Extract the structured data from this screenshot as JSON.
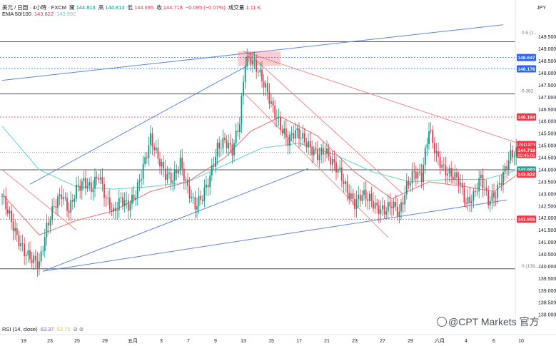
{
  "header": {
    "symbol": "美元 / 日圆 · 4小時 · FXCM",
    "open_label": "開",
    "open": "144.813",
    "high_label": "高",
    "high": "144.813",
    "low_label": "低",
    "low": "144.695",
    "close_label": "收",
    "close": "144.718",
    "change": "−0.095 (−0.07%)",
    "volume_label": "成交量",
    "volume": "1.11 K",
    "ema_label": "EMA 50/100",
    "ema50": "143.822",
    "ema100": "143.992",
    "currency": "JPY"
  },
  "rsi": {
    "label": "RSI (14, close)",
    "v1": "63.37",
    "v2": "53.79"
  },
  "watermark": "@CPT Markets 官方",
  "colors": {
    "up": "#089981",
    "down": "#f23645",
    "ema50": "#f06c6c",
    "ema100": "#5cd6d0",
    "trendline": "#5b86e5",
    "resistance": "#f28b8b"
  },
  "chart_data": {
    "type": "candlestick",
    "symbol": "USDJPY",
    "timeframe": "4h",
    "ylim": [
      137.65,
      150.2
    ],
    "price_ticks": [
      "149.500",
      "149.000",
      "148.500",
      "148.000",
      "147.500",
      "147.000",
      "146.500",
      "146.000",
      "145.500",
      "145.000",
      "144.500",
      "144.000",
      "143.500",
      "143.000",
      "142.500",
      "142.000",
      "141.500",
      "141.000",
      "140.500",
      "140.000",
      "139.500",
      "139.000",
      "138.500",
      "138.000"
    ],
    "x_ticks": [
      "19",
      "23",
      "25",
      "29",
      "五月",
      "3",
      "7",
      "9",
      "13",
      "15",
      "17",
      "21",
      "23",
      "27",
      "29",
      "六月",
      "4",
      "6",
      "10"
    ],
    "current_price": {
      "label": "USDJPY",
      "price": "144.718",
      "countdown": "02:45:05"
    },
    "price_labels": [
      {
        "value": "148.647",
        "style": "blue"
      },
      {
        "value": "148.178",
        "style": "blue"
      },
      {
        "value": "146.184",
        "style": "red"
      },
      {
        "value": "143.993",
        "style": "teal"
      },
      {
        "value": "143.822",
        "style": "red"
      },
      {
        "value": "141.955",
        "style": "red"
      }
    ],
    "fib_labels": [
      {
        "label": "0.5 (1...",
        "price": 149.55
      },
      {
        "label": "0.382",
        "price": 147.14
      },
      {
        "label": "0 (139...",
        "price": 139.9
      }
    ],
    "horizontal_levels": [
      {
        "price": 149.3,
        "style": "solid-gray"
      },
      {
        "price": 147.14,
        "style": "solid-gray"
      },
      {
        "price": 144.0,
        "style": "solid-gray"
      },
      {
        "price": 139.9,
        "style": "solid-gray"
      },
      {
        "price": 148.647,
        "style": "dotted-blue"
      },
      {
        "price": 148.178,
        "style": "dotted-blue"
      },
      {
        "price": 146.184,
        "style": "dotted-red"
      },
      {
        "price": 141.955,
        "style": "dotted-red"
      }
    ],
    "trendlines": [
      {
        "color": "blue",
        "from": [
          15,
          143.4
        ],
        "to": [
          132,
          148.3
        ]
      },
      {
        "color": "blue",
        "from": [
          0,
          147.7
        ],
        "to": [
          270,
          150.0
        ]
      },
      {
        "color": "blue",
        "from": [
          22,
          139.8
        ],
        "to": [
          165,
          144.05
        ]
      },
      {
        "color": "blue",
        "from": [
          22,
          139.8
        ],
        "to": [
          272,
          142.75
        ]
      },
      {
        "color": "red",
        "from": [
          130,
          148.9
        ],
        "to": [
          282,
          145.0
        ]
      },
      {
        "color": "red",
        "from": [
          133,
          148.8
        ],
        "to": [
          216,
          143.0
        ]
      },
      {
        "color": "red",
        "from": [
          130,
          147.2
        ],
        "to": [
          208,
          141.2
        ]
      },
      {
        "color": "red",
        "from": [
          0,
          144.0
        ],
        "to": [
          40,
          141.5
        ]
      }
    ],
    "supply_zone": {
      "x_from": 127,
      "x_to": 150,
      "price_from": 148.3,
      "price_to": 148.9
    },
    "candle_anchors": [
      [
        0,
        142.9
      ],
      [
        4,
        142.1
      ],
      [
        8,
        141.2
      ],
      [
        12,
        140.6
      ],
      [
        16,
        140.3
      ],
      [
        20,
        140.1
      ],
      [
        24,
        141.6
      ],
      [
        28,
        142.5
      ],
      [
        32,
        143.0
      ],
      [
        36,
        142.3
      ],
      [
        40,
        143.2
      ],
      [
        44,
        143.5
      ],
      [
        48,
        143.2
      ],
      [
        52,
        143.8
      ],
      [
        56,
        142.8
      ],
      [
        60,
        142.2
      ],
      [
        64,
        142.8
      ],
      [
        68,
        142.5
      ],
      [
        72,
        143.0
      ],
      [
        76,
        144.1
      ],
      [
        80,
        145.3
      ],
      [
        84,
        144.5
      ],
      [
        88,
        143.8
      ],
      [
        92,
        143.6
      ],
      [
        96,
        144.3
      ],
      [
        100,
        143.2
      ],
      [
        104,
        142.5
      ],
      [
        108,
        142.9
      ],
      [
        112,
        143.7
      ],
      [
        116,
        144.9
      ],
      [
        120,
        145.2
      ],
      [
        124,
        144.8
      ],
      [
        128,
        146.0
      ],
      [
        131,
        148.5
      ],
      [
        134,
        148.6
      ],
      [
        138,
        148.1
      ],
      [
        142,
        147.4
      ],
      [
        146,
        146.5
      ],
      [
        150,
        145.8
      ],
      [
        154,
        145.2
      ],
      [
        158,
        145.6
      ],
      [
        162,
        145.3
      ],
      [
        166,
        144.9
      ],
      [
        170,
        144.6
      ],
      [
        174,
        144.8
      ],
      [
        178,
        144.3
      ],
      [
        182,
        143.9
      ],
      [
        186,
        143.1
      ],
      [
        190,
        142.6
      ],
      [
        194,
        143.0
      ],
      [
        198,
        142.8
      ],
      [
        202,
        142.4
      ],
      [
        206,
        142.3
      ],
      [
        210,
        142.6
      ],
      [
        214,
        142.2
      ],
      [
        218,
        143.3
      ],
      [
        222,
        143.9
      ],
      [
        226,
        143.7
      ],
      [
        230,
        145.7
      ],
      [
        234,
        144.6
      ],
      [
        238,
        144.0
      ],
      [
        242,
        143.8
      ],
      [
        246,
        143.6
      ],
      [
        250,
        142.6
      ],
      [
        254,
        142.9
      ],
      [
        258,
        143.7
      ],
      [
        262,
        142.7
      ],
      [
        266,
        143.0
      ],
      [
        270,
        143.8
      ],
      [
        274,
        144.6
      ],
      [
        277,
        144.718
      ]
    ],
    "ema50_anchors": [
      [
        0,
        143.0
      ],
      [
        20,
        141.3
      ],
      [
        40,
        141.9
      ],
      [
        60,
        142.3
      ],
      [
        80,
        143.1
      ],
      [
        100,
        143.5
      ],
      [
        120,
        144.5
      ],
      [
        134,
        145.6
      ],
      [
        150,
        146.2
      ],
      [
        170,
        145.4
      ],
      [
        190,
        143.9
      ],
      [
        210,
        142.8
      ],
      [
        230,
        143.5
      ],
      [
        250,
        143.3
      ],
      [
        265,
        143.1
      ],
      [
        278,
        143.822
      ]
    ],
    "ema100_anchors": [
      [
        0,
        145.8
      ],
      [
        20,
        144.0
      ],
      [
        40,
        143.3
      ],
      [
        60,
        143.2
      ],
      [
        80,
        143.3
      ],
      [
        100,
        143.5
      ],
      [
        120,
        144.2
      ],
      [
        140,
        144.9
      ],
      [
        160,
        145.1
      ],
      [
        180,
        144.6
      ],
      [
        200,
        143.9
      ],
      [
        220,
        143.5
      ],
      [
        240,
        143.6
      ],
      [
        260,
        143.6
      ],
      [
        278,
        143.993
      ]
    ]
  }
}
